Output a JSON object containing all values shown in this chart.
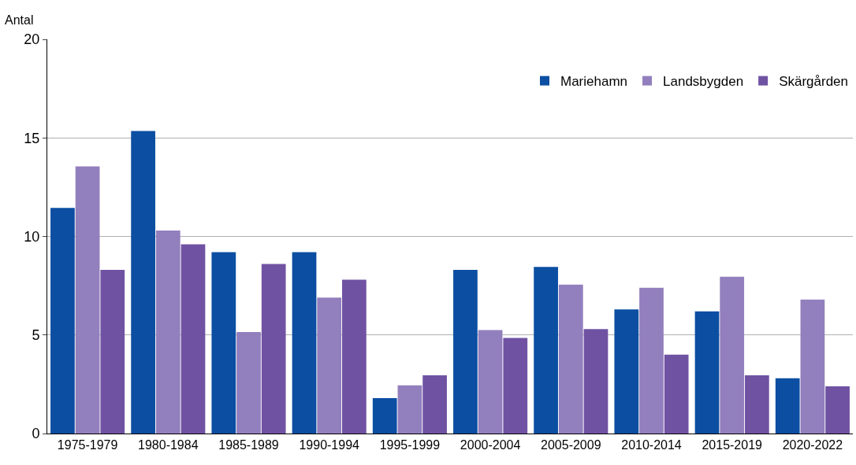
{
  "chart_data": {
    "type": "bar",
    "ylabel": "Antal",
    "categories": [
      "1975-1979",
      "1980-1984",
      "1985-1989",
      "1990-1994",
      "1995-1999",
      "2000-2004",
      "2005-2009",
      "2010-2014",
      "2015-2019",
      "2020-2022"
    ],
    "series": [
      {
        "name": "Mariehamn",
        "color": "#0b4ea2",
        "values": [
          11.45,
          15.35,
          9.2,
          9.2,
          1.8,
          8.3,
          8.45,
          6.3,
          6.2,
          2.8
        ]
      },
      {
        "name": "Landsbygden",
        "color": "#927fbd",
        "values": [
          13.55,
          10.3,
          5.15,
          6.9,
          2.45,
          5.25,
          7.55,
          7.4,
          7.95,
          6.8
        ]
      },
      {
        "name": "Skärgården",
        "color": "#7052a3",
        "values": [
          8.3,
          9.6,
          8.6,
          7.8,
          2.95,
          4.85,
          5.3,
          4.0,
          2.95,
          2.4
        ]
      }
    ],
    "ylim": [
      0,
      20
    ],
    "yticks": [
      0,
      5,
      10,
      15,
      20
    ],
    "grid": "y",
    "legend": "top right"
  }
}
